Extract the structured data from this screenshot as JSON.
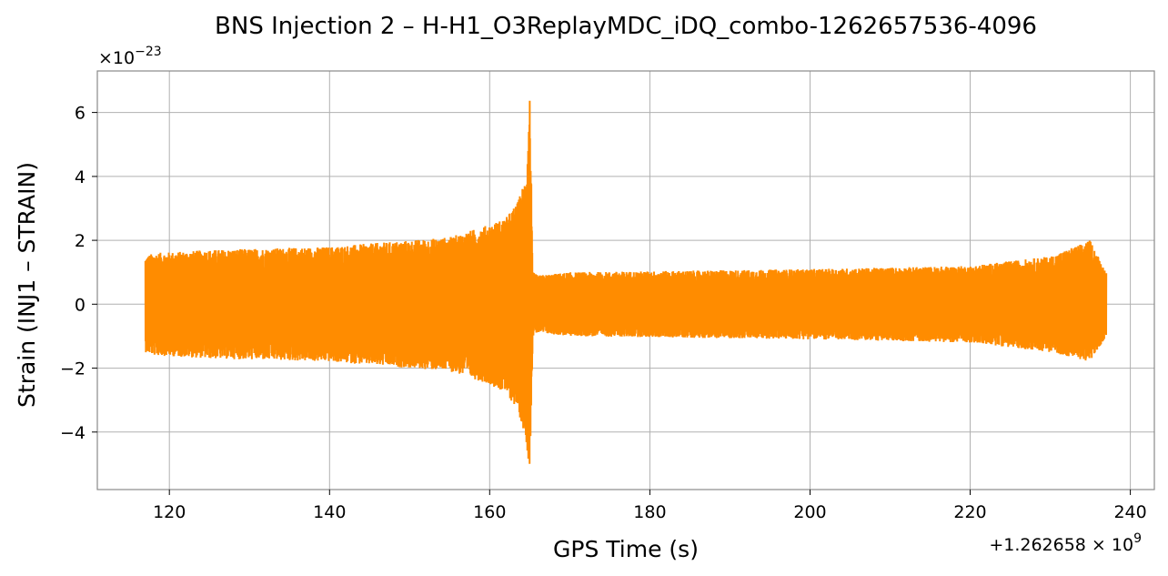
{
  "chart_data": {
    "type": "line",
    "title": "BNS Injection 2 – H-H1_O3ReplayMDC_iDQ_combo-1262657536-4096",
    "xlabel": "GPS Time (s)",
    "ylabel": "Strain (INJ1 – STRAIN)",
    "x_offset_label": "+1.262658 × 10",
    "x_offset_exponent": "9",
    "y_scale_label": "×10",
    "y_scale_exponent": "−23",
    "xlim": [
      111,
      243
    ],
    "ylim": [
      -5.8,
      7.3
    ],
    "xticks": [
      120,
      140,
      160,
      180,
      200,
      220,
      240
    ],
    "xtick_labels": [
      "120",
      "140",
      "160",
      "180",
      "200",
      "220",
      "240"
    ],
    "yticks": [
      -4,
      -2,
      0,
      2,
      4,
      6
    ],
    "ytick_labels": [
      "−4",
      "−2",
      "0",
      "2",
      "4",
      "6"
    ],
    "grid": true,
    "series": [
      {
        "color": "#ff8c00",
        "x_start": 117,
        "x_end": 237,
        "envelope": {
          "x": [
            117,
            118,
            125,
            140,
            150,
            155,
            160,
            162,
            163.5,
            164.5,
            165,
            165.4,
            166,
            170,
            200,
            220,
            230,
            235,
            237
          ],
          "upper": [
            1.5,
            1.6,
            1.7,
            1.8,
            2.0,
            2.1,
            2.5,
            2.7,
            3.2,
            4.0,
            6.7,
            1.0,
            0.9,
            1.0,
            1.1,
            1.2,
            1.5,
            2.0,
            1.0
          ],
          "lower": [
            -1.5,
            -1.6,
            -1.7,
            -1.8,
            -2.0,
            -2.1,
            -2.5,
            -2.8,
            -3.3,
            -4.2,
            -5.2,
            -1.0,
            -0.9,
            -1.0,
            -1.1,
            -1.2,
            -1.5,
            -1.8,
            -1.0
          ]
        }
      }
    ]
  }
}
